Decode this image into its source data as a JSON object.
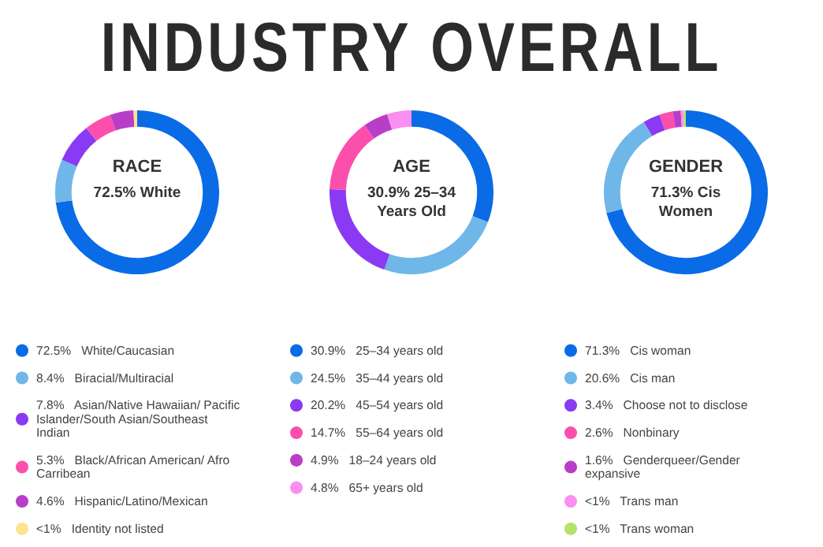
{
  "chart_data": [
    {
      "type": "other",
      "title": "INDUSTRY OVERALL"
    },
    {
      "type": "donut",
      "title": "RACE",
      "subtitle": "72.5% White",
      "legend": "bottom",
      "categories": [
        "White/Caucasian",
        "Biracial/Multiracial",
        "Asian/Native Hawaiian/ Pacific Islander/South Asian/Southeast Indian",
        "Black/African American/ Afro Carribean",
        "Hispanic/Latino/Mexican",
        "Identity not listed"
      ],
      "values": [
        72.5,
        8.4,
        7.8,
        5.3,
        4.6,
        0.7
      ],
      "value_labels": [
        "72.5%",
        "8.4%",
        "7.8%",
        "5.3%",
        "4.6%",
        "<1%"
      ],
      "colors": [
        "#0a6be6",
        "#6fb7e8",
        "#8a3af2",
        "#fc4fac",
        "#b83ec8",
        "#fde38f"
      ]
    },
    {
      "type": "donut",
      "title": "AGE",
      "subtitle": "30.9% 25–34 Years Old",
      "legend": "bottom",
      "categories": [
        "25–34 years old",
        "35–44 years old",
        "45–54 years old",
        "55–64 years old",
        "18–24 years old",
        "65+ years old"
      ],
      "values": [
        30.9,
        24.5,
        20.2,
        14.7,
        4.9,
        4.8
      ],
      "value_labels": [
        "30.9%",
        "24.5%",
        "20.2%",
        "14.7%",
        "4.9%",
        "4.8%"
      ],
      "colors": [
        "#0a6be6",
        "#6fb7e8",
        "#8a3af2",
        "#fc4fac",
        "#b83ec8",
        "#f98ff0"
      ]
    },
    {
      "type": "donut",
      "title": "GENDER",
      "subtitle": "71.3% Cis Women",
      "legend": "bottom",
      "categories": [
        "Cis woman",
        "Cis man",
        "Choose not to disclose",
        "Nonbinary",
        "Genderqueer/Gender expansive",
        "Trans man",
        "Trans woman"
      ],
      "values": [
        71.3,
        20.6,
        3.4,
        2.6,
        1.6,
        0.5,
        0.5
      ],
      "value_labels": [
        "71.3%",
        "20.6%",
        "3.4%",
        "2.6%",
        "1.6%",
        "<1%",
        "<1%"
      ],
      "colors": [
        "#0a6be6",
        "#6fb7e8",
        "#8a3af2",
        "#fc4fac",
        "#b83ec8",
        "#f98ff0",
        "#b5e26a"
      ]
    }
  ]
}
